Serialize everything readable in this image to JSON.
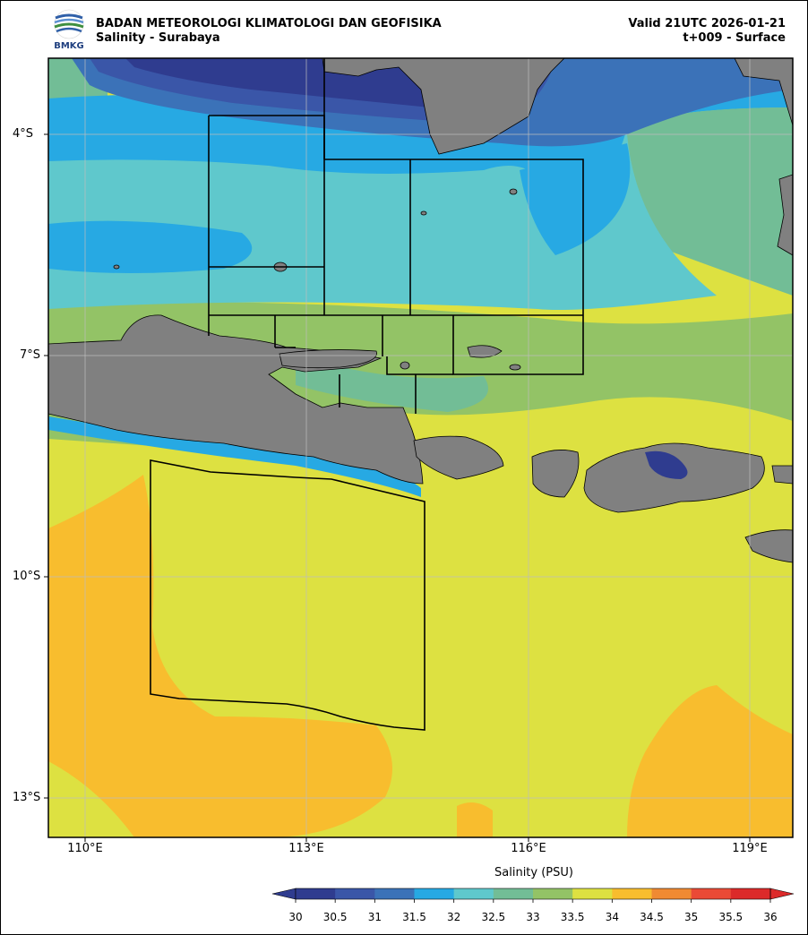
{
  "header": {
    "org": "BADAN METEOROLOGI KLIMATOLOGI DAN GEOFISIKA",
    "product": "Salinity - Surabaya",
    "valid": "Valid 21UTC 2026-01-21",
    "step": "t+009 - Surface"
  },
  "logo": {
    "text": "BMKG"
  },
  "axes": {
    "lat_labels": [
      "4°S",
      "7°S",
      "10°S",
      "13°S"
    ],
    "lon_labels": [
      "110°E",
      "113°E",
      "116°E",
      "119°E"
    ]
  },
  "colorbar": {
    "title": "Salinity (PSU)",
    "labels": [
      "30",
      "30.5",
      "31",
      "31.5",
      "32",
      "32.5",
      "33",
      "33.5",
      "34",
      "34.5",
      "35",
      "35.5",
      "36"
    ],
    "colors": [
      "#2f3c8f",
      "#3a56a8",
      "#3b72b8",
      "#27a9e3",
      "#5fc8cc",
      "#72bd96",
      "#93c366",
      "#dde141",
      "#f8bd2e",
      "#f08a32",
      "#ea4a36",
      "#dc2a2a"
    ]
  },
  "palette": {
    "land": "#808080",
    "grid": "#bdbdbd"
  }
}
